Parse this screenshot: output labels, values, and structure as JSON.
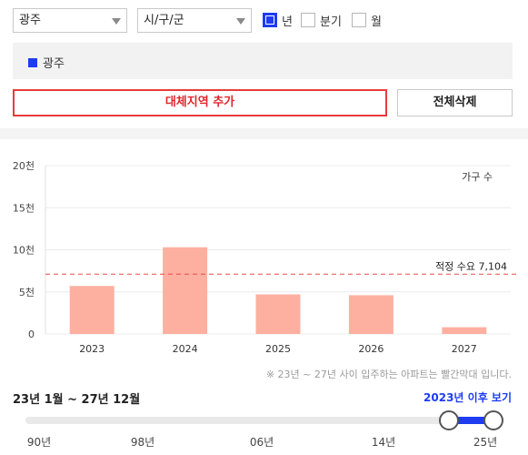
{
  "filters": {
    "region_select": "광주",
    "district_select": "시/구/군",
    "period_options": [
      {
        "label": "년",
        "checked": true
      },
      {
        "label": "분기",
        "checked": false
      },
      {
        "label": "월",
        "checked": false
      }
    ]
  },
  "selected_regions": [
    {
      "label": "광주",
      "color": "#1e3cf0"
    }
  ],
  "buttons": {
    "add_region": "대체지역 추가",
    "clear_all": "전체삭제"
  },
  "chart_data": {
    "type": "bar",
    "unit_label": "가구 수",
    "categories": [
      "2023",
      "2024",
      "2025",
      "2026",
      "2027"
    ],
    "values": [
      5700,
      10300,
      4700,
      4600,
      800
    ],
    "ylim": [
      0,
      20000
    ],
    "y_ticks": [
      {
        "value": 0,
        "label": "0"
      },
      {
        "value": 5000,
        "label": "5천"
      },
      {
        "value": 10000,
        "label": "10천"
      },
      {
        "value": 15000,
        "label": "15천"
      },
      {
        "value": 20000,
        "label": "20천"
      }
    ],
    "reference_line": {
      "label": "적정 수요 7,104",
      "value": 7104
    },
    "bar_color": "#fdb0a0",
    "reference_color": "#e84a4a"
  },
  "note": "※ 23년 ~ 27년 사이 입주하는 아파트는 빨간막대 입니다.",
  "period_text": "23년 1월 ~ 27년 12월",
  "since_link": "2023년 이후 보기",
  "slider": {
    "ticks": [
      "90년",
      "98년",
      "06년",
      "14년",
      "25년"
    ],
    "range_start_year": 2023,
    "range_end_year": 2027
  }
}
